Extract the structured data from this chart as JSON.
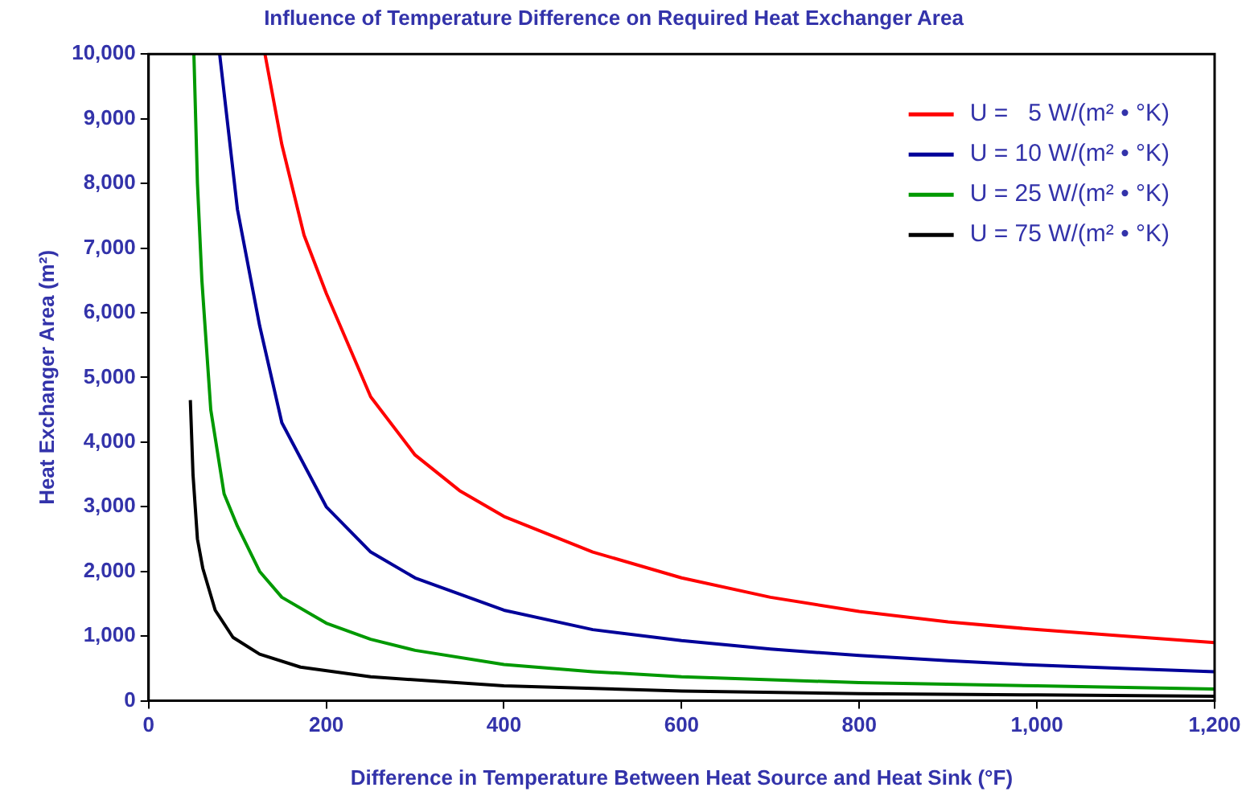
{
  "chart_data": {
    "type": "line",
    "title": "Influence of Temperature Difference on Required Heat Exchanger Area",
    "xlabel": "Difference in Temperature Between Heat Source and Heat Sink (°F)",
    "ylabel": "Heat Exchanger Area (m²)",
    "xlim": [
      0,
      1200
    ],
    "xticks": [
      0,
      200,
      400,
      600,
      800,
      {
        "value": 1000,
        "label": "1,000"
      },
      {
        "value": 1200,
        "label": "1,200"
      }
    ],
    "ylim": [
      0,
      10000
    ],
    "yticks": [
      0,
      {
        "value": 1000,
        "label": "1,000"
      },
      {
        "value": 2000,
        "label": "2,000"
      },
      {
        "value": 3000,
        "label": "3,000"
      },
      {
        "value": 4000,
        "label": "4,000"
      },
      {
        "value": 5000,
        "label": "5,000"
      },
      {
        "value": 6000,
        "label": "6,000"
      },
      {
        "value": 7000,
        "label": "7,000"
      },
      {
        "value": 8000,
        "label": "8,000"
      },
      {
        "value": 9000,
        "label": "9,000"
      },
      {
        "value": 10000,
        "label": "10,000"
      }
    ],
    "grid": false,
    "legend": "top right",
    "marker": "none",
    "line_style": "solid",
    "series": [
      {
        "name": "U =   5 W/(m² • °K)",
        "color": "#ff0000",
        "x": [
          131,
          150,
          175,
          200,
          250,
          300,
          350,
          400,
          500,
          600,
          700,
          800,
          900,
          1000,
          1100,
          1200
        ],
        "values": [
          10000,
          8600,
          7200,
          6300,
          4700,
          3800,
          3250,
          2850,
          2300,
          1900,
          1600,
          1380,
          1220,
          1100,
          1000,
          900
        ]
      },
      {
        "name": "U = 10 W/(m² • °K)",
        "color": "#000099",
        "x": [
          80,
          100,
          125,
          150,
          200,
          250,
          300,
          400,
          500,
          600,
          700,
          800,
          900,
          1000,
          1100,
          1200
        ],
        "values": [
          10000,
          7600,
          5800,
          4300,
          3000,
          2300,
          1900,
          1400,
          1100,
          930,
          800,
          700,
          620,
          550,
          500,
          450
        ]
      },
      {
        "name": "U = 25 W/(m² • °K)",
        "color": "#009900",
        "x": [
          51,
          55,
          60,
          70,
          85,
          100,
          125,
          150,
          200,
          250,
          300,
          400,
          500,
          600,
          800,
          1000,
          1200
        ],
        "values": [
          10000,
          8000,
          6500,
          4500,
          3200,
          2700,
          2000,
          1600,
          1200,
          950,
          780,
          560,
          450,
          370,
          280,
          230,
          180
        ]
      },
      {
        "name": "U = 75 W/(m² • °K)",
        "color": "#000000",
        "x": [
          47,
          50,
          55,
          61,
          75,
          95,
          125,
          171,
          250,
          400,
          600,
          800,
          1000,
          1200
        ],
        "values": [
          4650,
          3500,
          2500,
          2050,
          1400,
          980,
          720,
          520,
          370,
          230,
          150,
          110,
          90,
          70
        ]
      }
    ]
  }
}
